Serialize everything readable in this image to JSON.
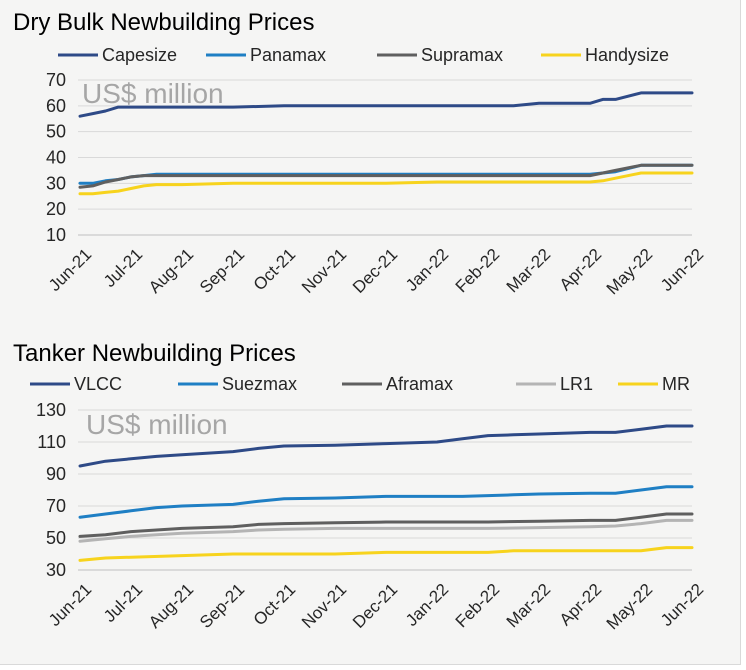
{
  "chart_data": [
    {
      "type": "line",
      "title": "Dry Bulk Newbuilding Prices",
      "unit_label": "US$ million",
      "categories": [
        "Jun-21",
        "Jul-21",
        "Aug-21",
        "Sep-21",
        "Oct-21",
        "Nov-21",
        "Dec-21",
        "Jan-22",
        "Feb-22",
        "Mar-22",
        "Apr-22",
        "May-22",
        "Jun-22"
      ],
      "ylim": [
        10,
        70
      ],
      "yticks": [
        10,
        20,
        30,
        40,
        50,
        60,
        70
      ],
      "grid": true,
      "legend_position": "top",
      "series": [
        {
          "name": "Capesize",
          "color": "#2e4a87",
          "x": [
            0,
            0.25,
            0.5,
            0.75,
            1,
            2,
            3,
            4,
            5,
            6,
            7,
            8,
            8.5,
            9,
            10,
            10.25,
            10.5,
            11,
            12
          ],
          "values": [
            56,
            57,
            58,
            59.5,
            59.5,
            59.5,
            59.5,
            60,
            60,
            60,
            60,
            60,
            60,
            61,
            61,
            62.5,
            62.5,
            65,
            65
          ]
        },
        {
          "name": "Panamax",
          "color": "#1f7fc4",
          "x": [
            0,
            0.25,
            0.5,
            0.75,
            1,
            1.25,
            1.5,
            2,
            3,
            4,
            5,
            6,
            7,
            8,
            9,
            10,
            10.25,
            10.5,
            11,
            12
          ],
          "values": [
            30,
            30,
            31,
            31.5,
            32.5,
            33,
            33.5,
            33.5,
            33.5,
            33.5,
            33.5,
            33.5,
            33.5,
            33.5,
            33.5,
            33.5,
            34,
            34.5,
            37,
            37
          ]
        },
        {
          "name": "Supramax",
          "color": "#5f5f5f",
          "x": [
            0,
            0.25,
            0.5,
            0.75,
            1,
            1.25,
            1.5,
            2,
            3,
            4,
            5,
            6,
            7,
            8,
            9,
            10,
            10.25,
            10.5,
            11,
            12
          ],
          "values": [
            28.5,
            29,
            30.5,
            31.5,
            32.5,
            33,
            33,
            33,
            33,
            33,
            33,
            33,
            33,
            33,
            33,
            33,
            34,
            35,
            37,
            37
          ]
        },
        {
          "name": "Handysize",
          "color": "#f7d31d",
          "x": [
            0,
            0.25,
            0.5,
            0.75,
            1,
            1.25,
            1.5,
            2,
            3,
            4,
            5,
            6,
            7,
            8,
            9,
            10,
            10.25,
            10.5,
            11,
            12
          ],
          "values": [
            26,
            26,
            26.5,
            27,
            28,
            29,
            29.5,
            29.5,
            30,
            30,
            30,
            30,
            30.5,
            30.5,
            30.5,
            30.5,
            31,
            32,
            34,
            34
          ]
        }
      ]
    },
    {
      "type": "line",
      "title": "Tanker Newbuilding Prices",
      "unit_label": "US$ million",
      "categories": [
        "Jun-21",
        "Jul-21",
        "Aug-21",
        "Sep-21",
        "Oct-21",
        "Nov-21",
        "Dec-21",
        "Jan-22",
        "Feb-22",
        "Mar-22",
        "Apr-22",
        "May-22",
        "Jun-22"
      ],
      "ylim": [
        30,
        130
      ],
      "yticks": [
        30,
        50,
        70,
        90,
        110,
        130
      ],
      "grid": true,
      "legend_position": "top",
      "series": [
        {
          "name": "VLCC",
          "color": "#2e4a87",
          "x": [
            0,
            0.5,
            1,
            1.5,
            2,
            3,
            3.5,
            4,
            5,
            6,
            7,
            7.5,
            8,
            8.5,
            9,
            10,
            10.5,
            11,
            11.5,
            12
          ],
          "values": [
            95,
            98,
            99.5,
            101,
            102,
            104,
            106,
            107.5,
            108,
            109,
            110,
            112,
            114,
            114.5,
            115,
            116,
            116,
            118,
            120,
            120
          ]
        },
        {
          "name": "Suezmax",
          "color": "#1f7fc4",
          "x": [
            0,
            0.5,
            1,
            1.5,
            2,
            3,
            3.5,
            4,
            5,
            6,
            7,
            7.5,
            8,
            8.5,
            9,
            10,
            10.5,
            11,
            11.5,
            12
          ],
          "values": [
            63,
            65,
            67,
            69,
            70,
            71,
            73,
            74.5,
            75,
            76,
            76,
            76,
            76.5,
            77,
            77.5,
            78,
            78,
            80,
            82,
            82
          ]
        },
        {
          "name": "Aframax",
          "color": "#5f5f5f",
          "x": [
            0,
            0.5,
            1,
            1.5,
            2,
            3,
            3.5,
            4,
            5,
            6,
            7,
            8,
            9,
            10,
            10.5,
            11,
            11.5,
            12
          ],
          "values": [
            51,
            52,
            54,
            55,
            56,
            57,
            58.5,
            59,
            59.5,
            60,
            60,
            60,
            60.5,
            61,
            61,
            63,
            65,
            65
          ]
        },
        {
          "name": "LR1",
          "color": "#b4b4b4",
          "x": [
            0,
            0.5,
            1,
            1.5,
            2,
            3,
            3.5,
            4,
            5,
            6,
            7,
            8,
            9,
            10,
            10.5,
            11,
            11.5,
            12
          ],
          "values": [
            48,
            49.5,
            51,
            52,
            53,
            54,
            55,
            55.5,
            56,
            56,
            56,
            56,
            56.5,
            57,
            57.5,
            59,
            61,
            61
          ]
        },
        {
          "name": "MR",
          "color": "#f7d31d",
          "x": [
            0,
            0.5,
            1,
            2,
            3,
            4,
            5,
            6,
            7,
            8,
            8.5,
            9,
            10,
            11,
            11.5,
            12
          ],
          "values": [
            36,
            37.5,
            38,
            39,
            40,
            40,
            40,
            41,
            41,
            41,
            42,
            42,
            42,
            42,
            44,
            44
          ]
        }
      ]
    }
  ]
}
